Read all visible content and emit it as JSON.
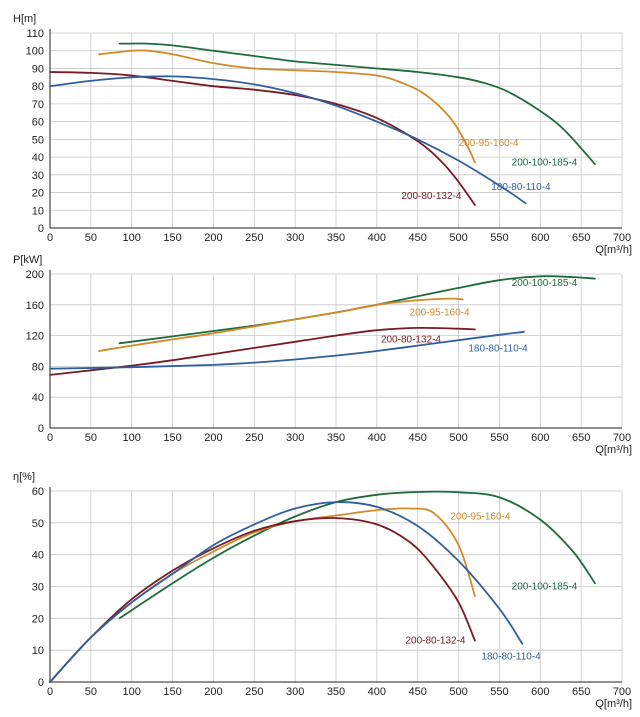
{
  "colors": {
    "200-100-185-4": "#1e6b3c",
    "200-95-160-4": "#d08a2a",
    "200-80-132-4": "#7a1a22",
    "180-80-110-4": "#2f5f9e"
  },
  "chart_data": [
    {
      "type": "line",
      "ylabel": "H[m]",
      "xlabel": "Q[m³/h]",
      "xlim": [
        0,
        700
      ],
      "ylim": [
        0,
        110
      ],
      "xticks": [
        0,
        50,
        100,
        150,
        200,
        250,
        300,
        350,
        400,
        450,
        500,
        550,
        600,
        650,
        700
      ],
      "yticks": [
        0,
        10,
        20,
        30,
        40,
        50,
        60,
        70,
        80,
        90,
        100,
        110
      ],
      "series": [
        {
          "name": "200-100-185-4",
          "labelAt": [
            565,
            37
          ],
          "x": [
            85,
            100,
            120,
            150,
            200,
            250,
            300,
            350,
            400,
            450,
            500,
            530,
            560,
            600,
            630,
            667
          ],
          "y": [
            104,
            104,
            104,
            103,
            100,
            97,
            94,
            92,
            90,
            88,
            85,
            82,
            77,
            66,
            55,
            36
          ]
        },
        {
          "name": "200-95-160-4",
          "labelAt": [
            500,
            48
          ],
          "x": [
            60,
            80,
            100,
            120,
            150,
            200,
            250,
            300,
            350,
            400,
            430,
            460,
            490,
            510,
            520
          ],
          "y": [
            98,
            99,
            100,
            100,
            98,
            93,
            90,
            89,
            88,
            86,
            82,
            75,
            62,
            47,
            37
          ]
        },
        {
          "name": "200-80-132-4",
          "labelAt": [
            430,
            18
          ],
          "x": [
            0,
            50,
            100,
            150,
            200,
            250,
            300,
            350,
            400,
            450,
            480,
            500,
            520
          ],
          "y": [
            88,
            87.5,
            86,
            83,
            80,
            78,
            75,
            70,
            62,
            49,
            37,
            26,
            13
          ]
        },
        {
          "name": "180-80-110-4",
          "labelAt": [
            540,
            23
          ],
          "x": [
            0,
            50,
            100,
            150,
            200,
            250,
            300,
            350,
            400,
            450,
            500,
            550,
            582
          ],
          "y": [
            80,
            83,
            85,
            85.5,
            84,
            81,
            76,
            69,
            60,
            50,
            38,
            24,
            14
          ]
        }
      ]
    },
    {
      "type": "line",
      "ylabel": "P[kW]",
      "xlabel": "Q[m³/h]",
      "xlim": [
        0,
        700
      ],
      "ylim": [
        0,
        200
      ],
      "xticks": [
        0,
        50,
        100,
        150,
        200,
        250,
        300,
        350,
        400,
        450,
        500,
        550,
        600,
        650,
        700
      ],
      "yticks": [
        0,
        40,
        80,
        120,
        160,
        200
      ],
      "series": [
        {
          "name": "200-100-185-4",
          "labelAt": [
            565,
            188
          ],
          "x": [
            85,
            150,
            200,
            250,
            300,
            350,
            400,
            450,
            500,
            550,
            600,
            640,
            667
          ],
          "y": [
            110,
            119,
            126,
            133,
            141,
            150,
            160,
            171,
            182,
            192,
            197,
            196,
            194
          ]
        },
        {
          "name": "200-95-160-4",
          "labelAt": [
            440,
            150
          ],
          "x": [
            60,
            100,
            150,
            200,
            250,
            300,
            350,
            400,
            450,
            490,
            505
          ],
          "y": [
            100,
            107,
            115,
            123,
            132,
            141,
            150,
            160,
            166,
            168,
            167
          ]
        },
        {
          "name": "200-80-132-4",
          "labelAt": [
            405,
            115
          ],
          "x": [
            0,
            50,
            100,
            150,
            200,
            250,
            300,
            350,
            400,
            450,
            500,
            520
          ],
          "y": [
            69,
            75,
            81,
            88,
            96,
            104,
            112,
            120,
            127,
            130,
            129,
            128
          ]
        },
        {
          "name": "180-80-110-4",
          "labelAt": [
            512,
            103
          ],
          "x": [
            0,
            100,
            200,
            250,
            300,
            350,
            400,
            450,
            500,
            550,
            580
          ],
          "y": [
            77,
            79,
            82,
            85,
            89,
            94,
            100,
            107,
            114,
            121,
            125
          ]
        }
      ]
    },
    {
      "type": "line",
      "ylabel": "η[%]",
      "xlabel": "Q[m³/h]",
      "xlim": [
        0,
        700
      ],
      "ylim": [
        0,
        60
      ],
      "xticks": [
        0,
        50,
        100,
        150,
        200,
        250,
        300,
        350,
        400,
        450,
        500,
        550,
        600,
        650,
        700
      ],
      "yticks": [
        0,
        10,
        20,
        30,
        40,
        50,
        60
      ],
      "series": [
        {
          "name": "200-100-185-4",
          "labelAt": [
            565,
            30
          ],
          "x": [
            85,
            150,
            200,
            250,
            300,
            350,
            400,
            450,
            500,
            550,
            600,
            640,
            667
          ],
          "y": [
            20,
            31,
            39,
            46,
            52,
            56.5,
            58.8,
            59.7,
            59.6,
            58,
            51,
            41,
            31
          ]
        },
        {
          "name": "200-95-160-4",
          "labelAt": [
            490,
            52
          ],
          "x": [
            0,
            50,
            100,
            150,
            200,
            250,
            300,
            350,
            400,
            440,
            470,
            500,
            520
          ],
          "y": [
            0,
            14,
            25,
            34,
            41,
            47,
            50.5,
            52.3,
            54,
            54.5,
            53,
            43,
            27
          ]
        },
        {
          "name": "200-80-132-4",
          "labelAt": [
            435,
            13
          ],
          "x": [
            0,
            50,
            100,
            150,
            200,
            250,
            300,
            350,
            400,
            440,
            470,
            500,
            520
          ],
          "y": [
            0,
            14,
            26,
            35,
            42,
            47.5,
            50.5,
            51.5,
            49.5,
            44,
            36,
            25,
            13
          ]
        },
        {
          "name": "180-80-110-4",
          "labelAt": [
            528,
            8
          ],
          "x": [
            0,
            50,
            100,
            150,
            200,
            250,
            300,
            350,
            400,
            450,
            500,
            550,
            578
          ],
          "y": [
            0,
            14,
            25,
            34,
            43,
            49.5,
            54.5,
            56.5,
            55,
            49,
            38,
            23,
            12
          ]
        }
      ]
    }
  ]
}
